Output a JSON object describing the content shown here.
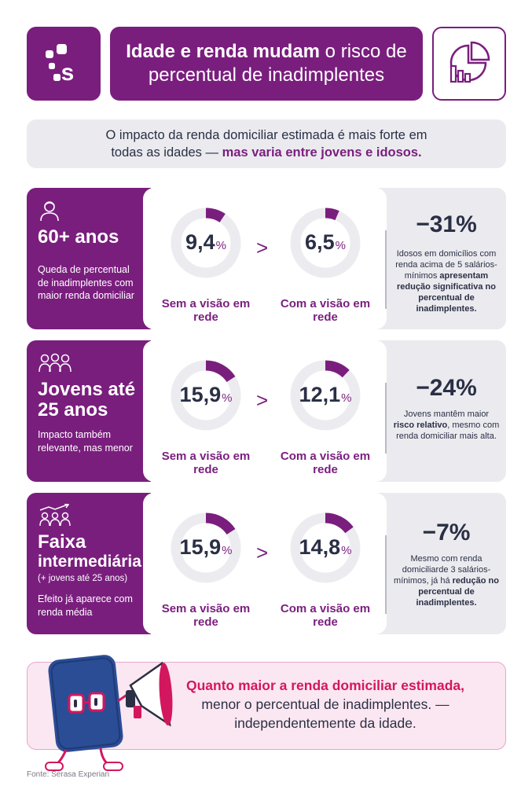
{
  "header": {
    "title_bold": "Idade e renda mudam",
    "title_rest": " o risco de",
    "title_line2": "percentual de inadimplentes"
  },
  "intro": {
    "line1": "O impacto da renda domiciliar estimada é mais forte em",
    "line2_plain": "todas as idades — ",
    "line2_bold": "mas varia entre jovens e idosos."
  },
  "rows": [
    {
      "icon": "elder-person-icon",
      "title": "60+ anos",
      "subtitle": "",
      "description": "Queda de percentual de inadimplentes com maior renda domiciliar",
      "left": {
        "value": "9,4",
        "unit": "%",
        "label": "Sem a visão em rede",
        "fill": 0.094
      },
      "right": {
        "value": "6,5",
        "unit": "%",
        "label": "Com a visão em rede",
        "fill": 0.065
      },
      "separator": ">",
      "stat": "−31%",
      "stat_text_plain": "Idosos em domicílios com renda acima de 5 salários-mínimos ",
      "stat_text_bold": "apresentam redução significativa no percentual de inadimplentes.",
      "stat_text_end": ""
    },
    {
      "icon": "young-people-group-icon",
      "title": "Jovens até 25 anos",
      "subtitle": "",
      "description": "Impacto também relevante, mas menor",
      "left": {
        "value": "15,9",
        "unit": "%",
        "label": "Sem a visão em rede",
        "fill": 0.159
      },
      "right": {
        "value": "12,1",
        "unit": "%",
        "label": "Com a visão em rede",
        "fill": 0.121
      },
      "separator": ">",
      "stat": "−24%",
      "stat_text_plain": "Jovens mantêm maior ",
      "stat_text_bold": "risco relativo",
      "stat_text_end": ", mesmo com renda domiciliar mais alta."
    },
    {
      "icon": "growth-group-icon",
      "title": "Faixa",
      "title2": "intermediária",
      "subtitle": "(+ jovens até 25 anos)",
      "description": "Efeito já aparece com renda média",
      "left": {
        "value": "15,9",
        "unit": "%",
        "label": "Sem a visão em rede",
        "fill": 0.159
      },
      "right": {
        "value": "14,8",
        "unit": "%",
        "label": "Com a visão em rede",
        "fill": 0.148
      },
      "separator": ">",
      "stat": "−7%",
      "stat_text_plain": "Mesmo com renda domiciliarde 3 salários-mínimos, já há ",
      "stat_text_bold": "redução no percentual de inadimplentes.",
      "stat_text_end": ""
    }
  ],
  "footer": {
    "highlight": "Quanto maior a renda domiciliar estimada,",
    "line2": "menor o percentual de inadimplentes. —",
    "line3": "independentemente da idade."
  },
  "source": "Fonte: Serasa Experian",
  "colors": {
    "purple": "#7a1e7e",
    "pink": "#d3175e",
    "gray": "#ebebef",
    "navy": "#2a2f45"
  }
}
